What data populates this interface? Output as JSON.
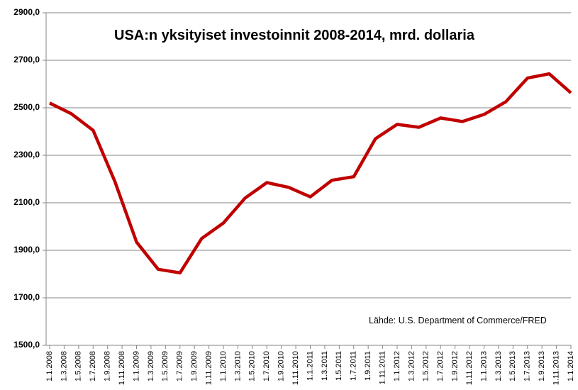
{
  "chart_data": {
    "type": "line",
    "title": "USA:n yksityiset investoinnit 2008-2014, mrd. dollaria",
    "annotation": "Lähde: U.S. Department of Commerce/FRED",
    "x": [
      "2008-01",
      "2008-04",
      "2008-07",
      "2008-10",
      "2009-01",
      "2009-04",
      "2009-07",
      "2009-10",
      "2010-01",
      "2010-04",
      "2010-07",
      "2010-10",
      "2011-01",
      "2011-04",
      "2011-07",
      "2011-10",
      "2012-01",
      "2012-04",
      "2012-07",
      "2012-10",
      "2013-01",
      "2013-04",
      "2013-07",
      "2013-10",
      "2014-01"
    ],
    "series": [
      {
        "name": "Yksityiset investoinnit",
        "color": "#c00000",
        "values": [
          2520,
          2475,
          2405,
          2190,
          1935,
          1820,
          1805,
          1950,
          2015,
          2120,
          2185,
          2165,
          2125,
          2195,
          2210,
          2370,
          2430,
          2418,
          2457,
          2442,
          2472,
          2525,
          2625,
          2643,
          2563
        ]
      }
    ],
    "xlim": [
      "2008-01",
      "2014-01"
    ],
    "xticks": [
      {
        "value": "2008-01",
        "label": "1.1.2008"
      },
      {
        "value": "2008-03",
        "label": "1.3.2008"
      },
      {
        "value": "2008-05",
        "label": "1.5.2008"
      },
      {
        "value": "2008-07",
        "label": "1.7.2008"
      },
      {
        "value": "2008-09",
        "label": "1.9.2008"
      },
      {
        "value": "2008-11",
        "label": "1.11.2008"
      },
      {
        "value": "2009-01",
        "label": "1.1.2009"
      },
      {
        "value": "2009-03",
        "label": "1.3.2009"
      },
      {
        "value": "2009-05",
        "label": "1.5.2009"
      },
      {
        "value": "2009-07",
        "label": "1.7.2009"
      },
      {
        "value": "2009-09",
        "label": "1.9.2009"
      },
      {
        "value": "2009-11",
        "label": "1.11.2009"
      },
      {
        "value": "2010-01",
        "label": "1.1.2010"
      },
      {
        "value": "2010-03",
        "label": "1.3.2010"
      },
      {
        "value": "2010-05",
        "label": "1.5.2010"
      },
      {
        "value": "2010-07",
        "label": "1.7.2010"
      },
      {
        "value": "2010-09",
        "label": "1.9.2010"
      },
      {
        "value": "2010-11",
        "label": "1.11.2010"
      },
      {
        "value": "2011-01",
        "label": "1.1.2011"
      },
      {
        "value": "2011-03",
        "label": "1.3.2011"
      },
      {
        "value": "2011-05",
        "label": "1.5.2011"
      },
      {
        "value": "2011-07",
        "label": "1.7.2011"
      },
      {
        "value": "2011-09",
        "label": "1.9.2011"
      },
      {
        "value": "2011-11",
        "label": "1.11.2011"
      },
      {
        "value": "2012-01",
        "label": "1.1.2012"
      },
      {
        "value": "2012-03",
        "label": "1.3.2012"
      },
      {
        "value": "2012-05",
        "label": "1.5.2012"
      },
      {
        "value": "2012-07",
        "label": "1.7.2012"
      },
      {
        "value": "2012-09",
        "label": "1.9.2012"
      },
      {
        "value": "2012-11",
        "label": "1.11.2012"
      },
      {
        "value": "2013-01",
        "label": "1.1.2013"
      },
      {
        "value": "2013-03",
        "label": "1.3.2013"
      },
      {
        "value": "2013-05",
        "label": "1.5.2013"
      },
      {
        "value": "2013-07",
        "label": "1.7.2013"
      },
      {
        "value": "2013-09",
        "label": "1.9.2013"
      },
      {
        "value": "2013-11",
        "label": "1.11.2013"
      },
      {
        "value": "2014-01",
        "label": "1.1.2014"
      }
    ],
    "ylim": [
      1500,
      2900
    ],
    "yticks": [
      {
        "value": 1500,
        "label": "1500,0"
      },
      {
        "value": 1700,
        "label": "1700,0"
      },
      {
        "value": 1900,
        "label": "1900,0"
      },
      {
        "value": 2100,
        "label": "2100,0"
      },
      {
        "value": 2300,
        "label": "2300,0"
      },
      {
        "value": 2500,
        "label": "2500,0"
      },
      {
        "value": 2700,
        "label": "2700,0"
      },
      {
        "value": 2900,
        "label": "2900,0"
      }
    ],
    "grid": true
  }
}
